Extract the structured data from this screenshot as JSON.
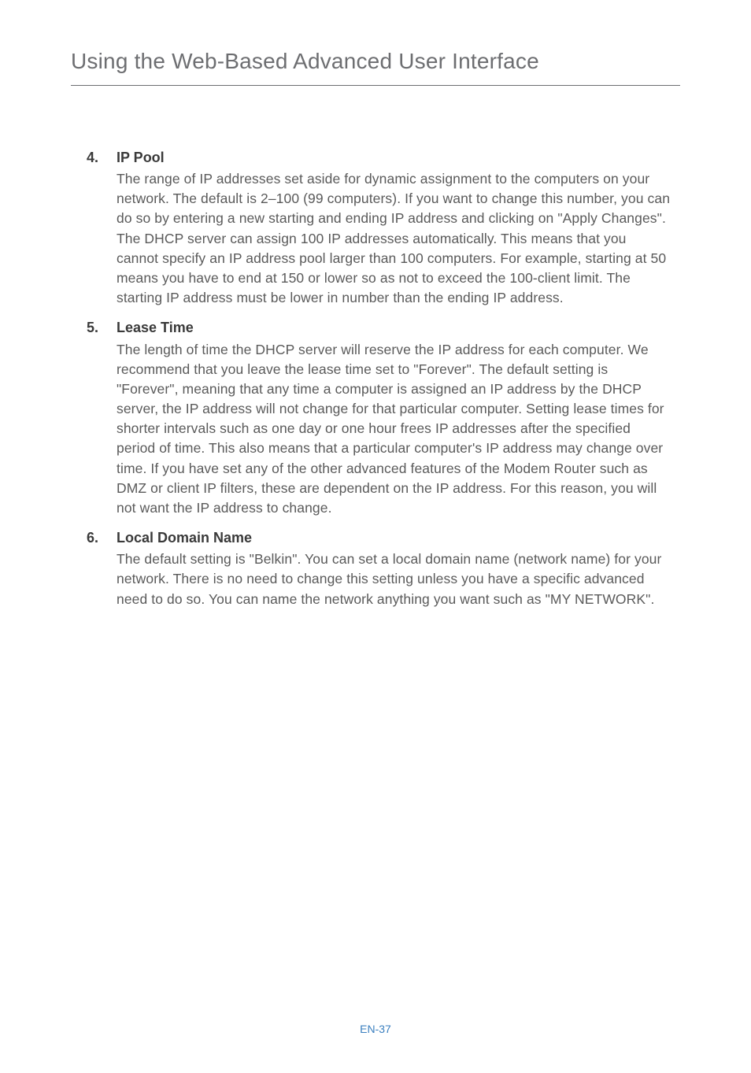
{
  "page": {
    "title": "Using the Web-Based Advanced User Interface",
    "footer": "EN-37",
    "title_color": "#6d6e71",
    "rule_color": "#6d6e71",
    "text_color": "#5a5a5a",
    "heading_color": "#3a3a3a",
    "footer_color": "#3a7fbf",
    "background_color": "#ffffff",
    "title_fontsize": 28,
    "body_fontsize": 17.5,
    "heading_fontsize": 18,
    "footer_fontsize": 14
  },
  "items": [
    {
      "number": "4.",
      "heading": "IP Pool",
      "text": "The range of IP addresses set aside for dynamic assignment to the computers on your network. The default is 2–100 (99 computers). If you want to change this number, you can do so by entering a new starting and ending IP address and clicking on \"Apply Changes\". The DHCP server can assign 100 IP addresses automatically. This means that you cannot specify an IP address pool larger than 100 computers. For example, starting at 50 means you have to end at 150 or lower so as not to exceed the 100-client limit. The starting IP address must be lower in number than the ending IP address."
    },
    {
      "number": "5.",
      "heading": "Lease Time",
      "text": "The length of time the DHCP server will reserve the IP address for each computer. We recommend that you leave the lease time set to \"Forever\". The default setting is \"Forever\", meaning that any time a computer is assigned an IP address by the DHCP server, the IP address will not change for that particular computer. Setting lease times for shorter intervals such as one day or one hour frees IP addresses after the specified period of time. This also means that a particular computer's IP address may change over time. If you have set any of the other advanced features of the Modem Router such as DMZ or client IP filters, these are dependent on the IP address. For this reason, you will not want the IP address to change."
    },
    {
      "number": "6.",
      "heading": "Local Domain Name",
      "text": "The default setting is \"Belkin\". You can set a local domain name (network name) for your network. There is no need to change this setting unless you have a specific advanced need to do so. You can name the network anything you want such as \"MY NETWORK\"."
    }
  ]
}
